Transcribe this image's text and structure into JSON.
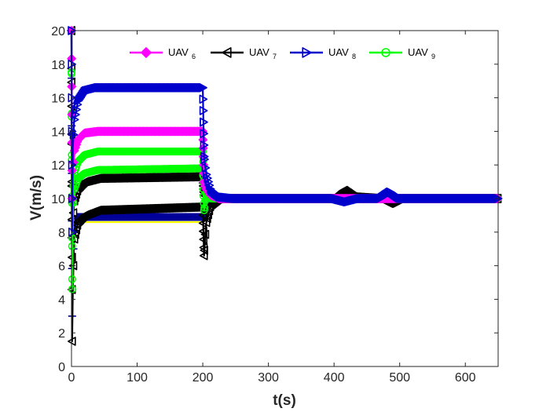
{
  "chart_data": {
    "type": "line",
    "title": "",
    "xlabel": "t(s)",
    "ylabel": "V(m/s)",
    "xlim": [
      0,
      650
    ],
    "ylim": [
      0,
      20
    ],
    "x_ticks": [
      0,
      100,
      200,
      300,
      400,
      500,
      600
    ],
    "y_ticks": [
      0,
      2,
      4,
      6,
      8,
      10,
      12,
      14,
      16,
      18,
      20
    ],
    "grid": false,
    "legend_position": "top",
    "legend": [
      {
        "label": "UAV",
        "subscript": "6",
        "color": "#ff00ff",
        "marker": "diamond"
      },
      {
        "label": "UAV",
        "subscript": "7",
        "color": "#000000",
        "marker": "triangle-left"
      },
      {
        "label": "UAV",
        "subscript": "8",
        "color": "#0000cc",
        "marker": "triangle-right"
      },
      {
        "label": "UAV",
        "subscript": "9",
        "color": "#00ff00",
        "marker": "circle"
      }
    ],
    "series": [
      {
        "color": "#ffff00",
        "marker": "none",
        "x": [
          0,
          1,
          2,
          4,
          8,
          200,
          202,
          205,
          212,
          225,
          250,
          650
        ],
        "y": [
          20,
          2.2,
          4.5,
          7.5,
          8.6,
          8.6,
          8.7,
          9.2,
          9.7,
          9.95,
          10,
          10
        ]
      },
      {
        "color": "#000099",
        "marker": "plus",
        "x": [
          0,
          1,
          2,
          4,
          8,
          200,
          202,
          205,
          212,
          225,
          250,
          650
        ],
        "y": [
          20,
          3.0,
          6.0,
          8.0,
          8.9,
          8.9,
          9.0,
          9.4,
          9.8,
          9.95,
          10,
          10
        ]
      },
      {
        "name": "UAV7",
        "color": "#000000",
        "marker": "triangle-left",
        "x": [
          0,
          1,
          2,
          4,
          10,
          20,
          40,
          200,
          202,
          205,
          212,
          225,
          250,
          400,
          415,
          430,
          470,
          485,
          500,
          650
        ],
        "y": [
          20,
          1.5,
          4.5,
          7.5,
          8.6,
          9.0,
          9.3,
          9.5,
          6.6,
          8.5,
          9.6,
          10.0,
          10.0,
          10.0,
          10.5,
          10.1,
          10.0,
          9.7,
          10.0,
          10.0
        ]
      },
      {
        "name": "UAV7",
        "color": "#000000",
        "marker": "triangle-left",
        "x": [
          0,
          1,
          2,
          4,
          10,
          20,
          40,
          200,
          202,
          205,
          212,
          225,
          250,
          650
        ],
        "y": [
          20,
          6.5,
          8.5,
          9.8,
          10.6,
          11.0,
          11.2,
          11.3,
          10.2,
          10.4,
          10.0,
          10.0,
          10.0,
          10.0
        ]
      },
      {
        "name": "UAV9",
        "color": "#00ff00",
        "marker": "circle",
        "x": [
          0,
          1,
          2,
          4,
          10,
          20,
          40,
          200,
          202,
          205,
          212,
          225,
          250,
          650
        ],
        "y": [
          20,
          4.6,
          9.0,
          10.5,
          11.2,
          11.5,
          11.7,
          11.8,
          9.3,
          10.2,
          10.0,
          10.0,
          10.0,
          10.0
        ]
      },
      {
        "name": "UAV9",
        "color": "#00ff00",
        "marker": "circle",
        "x": [
          0,
          1,
          2,
          4,
          10,
          20,
          40,
          200,
          202,
          205,
          212,
          225,
          250,
          650
        ],
        "y": [
          20,
          5.2,
          10.0,
          11.5,
          12.2,
          12.6,
          12.8,
          12.8,
          11.0,
          10.6,
          10.2,
          10.0,
          10.0,
          10.0
        ]
      },
      {
        "name": "UAV6",
        "color": "#ff00ff",
        "marker": "diamond",
        "x": [
          0,
          1,
          2,
          4,
          10,
          20,
          40,
          200,
          202,
          205,
          212,
          225,
          250,
          650
        ],
        "y": [
          20,
          10.0,
          11.5,
          12.8,
          13.5,
          13.9,
          14.0,
          14.0,
          11.0,
          10.6,
          10.2,
          10.0,
          10.0,
          10.0
        ]
      },
      {
        "name": "UAV8",
        "color": "#0000cc",
        "marker": "triangle-right",
        "x": [
          0,
          1,
          2,
          4,
          10,
          20,
          40,
          200,
          202,
          205,
          212,
          225,
          250,
          400,
          420,
          440,
          470,
          485,
          500,
          650
        ],
        "y": [
          20,
          8.0,
          13.0,
          14.6,
          15.8,
          16.4,
          16.6,
          16.6,
          12.5,
          11.5,
          10.5,
          10.1,
          10.0,
          10.0,
          9.8,
          10.0,
          10.0,
          10.4,
          10.0,
          10.0
        ]
      }
    ]
  }
}
